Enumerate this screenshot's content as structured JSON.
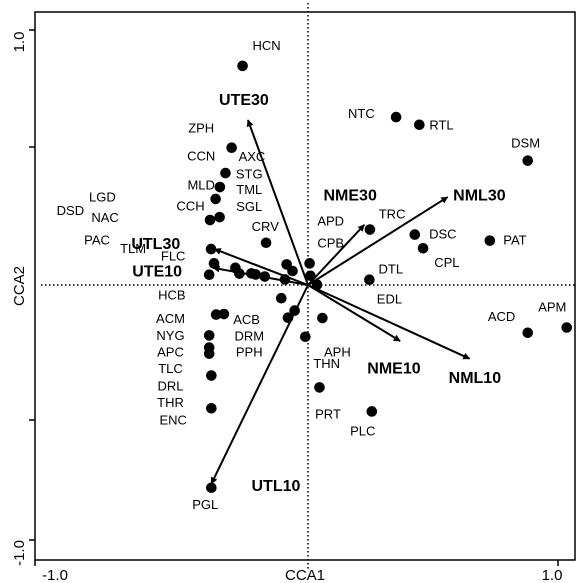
{
  "chart_data": {
    "type": "scatter",
    "title": "",
    "xlabel": "CCA1",
    "ylabel": "CCA2",
    "xlim": [
      -1.0,
      1.0
    ],
    "ylim": [
      -1.0,
      1.0
    ],
    "x_tick_labels": [
      "-1.0",
      "1.0"
    ],
    "y_tick_labels": [
      "1.0",
      "-1.0"
    ],
    "grid": false,
    "reference_lines": "dotted lines at x = 0 and y = 0",
    "marker_color": "#000000",
    "points": [
      {
        "label": "HCN",
        "x": -0.245,
        "y": 0.83
      },
      {
        "label": "NTC",
        "x": 0.33,
        "y": 0.636
      },
      {
        "label": "RTL",
        "x": 0.417,
        "y": 0.607
      },
      {
        "label": "DSM",
        "x": 0.823,
        "y": 0.471
      },
      {
        "label": "ZPH",
        "x": -0.286,
        "y": 0.52
      },
      {
        "label": "AXC",
        "x": -0.309,
        "y": 0.424
      },
      {
        "label": "STG",
        "x": -0.33,
        "y": 0.371
      },
      {
        "label": "TML",
        "x": -0.346,
        "y": 0.326
      },
      {
        "label": "SGL",
        "x": -0.331,
        "y": 0.257
      },
      {
        "label": "DSD",
        "x": -0.367,
        "y": 0.246
      },
      {
        "label": "CRV",
        "x": -0.157,
        "y": 0.16
      },
      {
        "label": "TRC",
        "x": 0.232,
        "y": 0.21
      },
      {
        "label": "DSC",
        "x": 0.4,
        "y": 0.191
      },
      {
        "label": "PAT",
        "x": 0.681,
        "y": 0.168
      },
      {
        "label": "CPL",
        "x": 0.431,
        "y": 0.139
      },
      {
        "label": "FLC",
        "x": -0.363,
        "y": 0.136
      },
      {
        "label": "UTL30 site",
        "x": -0.352,
        "y": 0.082
      },
      {
        "label": "UTE10 site",
        "x": -0.272,
        "y": 0.065
      },
      {
        "label": "CCH",
        "x": -0.37,
        "y": 0.039
      },
      {
        "label": "MLD",
        "x": -0.257,
        "y": 0.043
      },
      {
        "label": "CCN",
        "x": -0.212,
        "y": 0.044
      },
      {
        "label": "NAC",
        "x": -0.196,
        "y": 0.04
      },
      {
        "label": "LGD",
        "x": -0.162,
        "y": 0.032
      },
      {
        "label": "PAC",
        "x": -0.08,
        "y": 0.078
      },
      {
        "label": "TLM",
        "x": -0.058,
        "y": 0.053
      },
      {
        "label": "APD",
        "x": 0.006,
        "y": 0.082
      },
      {
        "label": "CPB",
        "x": 0.009,
        "y": 0.035
      },
      {
        "label": "DTL",
        "x": 0.23,
        "y": 0.02
      },
      {
        "label": "EDL",
        "x": 0.034,
        "y": 0.001
      },
      {
        "label": "ACB",
        "x": -0.086,
        "y": 0.021
      },
      {
        "label": "HCB",
        "x": -0.1,
        "y": -0.05
      },
      {
        "label": "DRM",
        "x": -0.05,
        "y": -0.097
      },
      {
        "label": "PPH",
        "x": -0.075,
        "y": -0.124
      },
      {
        "label": "ACM",
        "x": -0.315,
        "y": -0.11
      },
      {
        "label": "NYG",
        "x": -0.344,
        "y": -0.112
      },
      {
        "label": "APC",
        "x": -0.37,
        "y": -0.191
      },
      {
        "label": "TLC",
        "x": -0.37,
        "y": -0.237
      },
      {
        "label": "DRL",
        "x": -0.37,
        "y": -0.26
      },
      {
        "label": "THR",
        "x": -0.362,
        "y": -0.343
      },
      {
        "label": "ENC",
        "x": -0.362,
        "y": -0.467
      },
      {
        "label": "APH",
        "x": 0.054,
        "y": -0.125
      },
      {
        "label": "THN",
        "x": -0.01,
        "y": -0.196
      },
      {
        "label": "PRT",
        "x": 0.043,
        "y": -0.388
      },
      {
        "label": "PLC",
        "x": 0.239,
        "y": -0.479
      },
      {
        "label": "ACD",
        "x": 0.823,
        "y": -0.181
      },
      {
        "label": "APM",
        "x": 0.969,
        "y": -0.161
      },
      {
        "label": "PGL",
        "x": -0.362,
        "y": -0.768
      }
    ],
    "point_labels": [
      {
        "text": "HCN",
        "x": -0.155,
        "y": 0.903
      },
      {
        "text": "NTC",
        "x": 0.2,
        "y": 0.645
      },
      {
        "text": "RTL",
        "x": 0.5,
        "y": 0.602
      },
      {
        "text": "DSM",
        "x": 0.815,
        "y": 0.534
      },
      {
        "text": "ZPH",
        "x": -0.4,
        "y": 0.59
      },
      {
        "text": "CCN",
        "x": -0.4,
        "y": 0.485
      },
      {
        "text": "AXC",
        "x": -0.21,
        "y": 0.482
      },
      {
        "text": "STG",
        "x": -0.22,
        "y": 0.417
      },
      {
        "text": "MLD",
        "x": -0.4,
        "y": 0.375
      },
      {
        "text": "TML",
        "x": -0.22,
        "y": 0.358
      },
      {
        "text": "LGD",
        "x": -0.77,
        "y": 0.33
      },
      {
        "text": "CCH",
        "x": -0.44,
        "y": 0.296
      },
      {
        "text": "SGL",
        "x": -0.22,
        "y": 0.293
      },
      {
        "text": "DSD",
        "x": -0.89,
        "y": 0.279
      },
      {
        "text": "NAC",
        "x": -0.76,
        "y": 0.251
      },
      {
        "text": "CRV",
        "x": -0.16,
        "y": 0.218
      },
      {
        "text": "APD",
        "x": 0.085,
        "y": 0.239
      },
      {
        "text": "TRC",
        "x": 0.315,
        "y": 0.264
      },
      {
        "text": "DSC",
        "x": 0.505,
        "y": 0.19
      },
      {
        "text": "PAT",
        "x": 0.775,
        "y": 0.166
      },
      {
        "text": "PAC",
        "x": -0.79,
        "y": 0.166
      },
      {
        "text": "TLM",
        "x": -0.655,
        "y": 0.134
      },
      {
        "text": "FLC",
        "x": -0.505,
        "y": 0.106
      },
      {
        "text": "CPB",
        "x": 0.085,
        "y": 0.155
      },
      {
        "text": "CPL",
        "x": 0.52,
        "y": 0.082
      },
      {
        "text": "DTL",
        "x": 0.31,
        "y": 0.056
      },
      {
        "text": "EDL",
        "x": 0.305,
        "y": -0.058
      },
      {
        "text": "HCB",
        "x": -0.51,
        "y": -0.042
      },
      {
        "text": "ACB",
        "x": -0.23,
        "y": -0.134
      },
      {
        "text": "ACM",
        "x": -0.515,
        "y": -0.131
      },
      {
        "text": "DRM",
        "x": -0.22,
        "y": -0.197
      },
      {
        "text": "NYG",
        "x": -0.515,
        "y": -0.196
      },
      {
        "text": "APH",
        "x": 0.11,
        "y": -0.257
      },
      {
        "text": "PPH",
        "x": -0.22,
        "y": -0.258
      },
      {
        "text": "APC",
        "x": -0.515,
        "y": -0.258
      },
      {
        "text": "ACD",
        "x": 0.725,
        "y": -0.124
      },
      {
        "text": "APM",
        "x": 0.915,
        "y": -0.087
      },
      {
        "text": "THN",
        "x": 0.07,
        "y": -0.302
      },
      {
        "text": "TLC",
        "x": -0.515,
        "y": -0.321
      },
      {
        "text": "DRL",
        "x": -0.515,
        "y": -0.386
      },
      {
        "text": "THR",
        "x": -0.515,
        "y": -0.45
      },
      {
        "text": "PRT",
        "x": 0.075,
        "y": -0.492
      },
      {
        "text": "ENC",
        "x": -0.505,
        "y": -0.516
      },
      {
        "text": "PLC",
        "x": 0.205,
        "y": -0.558
      },
      {
        "text": "PGL",
        "x": -0.385,
        "y": -0.835
      }
    ],
    "vectors": [
      {
        "label": "UTE30",
        "x": -0.225,
        "y": 0.625,
        "label_x": -0.24,
        "label_y": 0.697
      },
      {
        "label": "UTL30",
        "x": -0.35,
        "y": 0.136,
        "label_x": -0.57,
        "label_y": 0.152
      },
      {
        "label": "UTE10",
        "x": -0.355,
        "y": 0.065,
        "label_x": -0.565,
        "label_y": 0.049
      },
      {
        "label": "UTL10",
        "x": -0.362,
        "y": -0.753,
        "label_x": -0.12,
        "label_y": -0.765
      },
      {
        "label": "NME30",
        "x": 0.211,
        "y": 0.228,
        "label_x": 0.158,
        "label_y": 0.336
      },
      {
        "label": "NML30",
        "x": 0.523,
        "y": 0.333,
        "label_x": 0.642,
        "label_y": 0.336
      },
      {
        "label": "NME10",
        "x": 0.345,
        "y": -0.212,
        "label_x": 0.322,
        "label_y": -0.32
      },
      {
        "label": "NML10",
        "x": 0.605,
        "y": -0.279,
        "label_x": 0.625,
        "label_y": -0.355
      }
    ]
  }
}
